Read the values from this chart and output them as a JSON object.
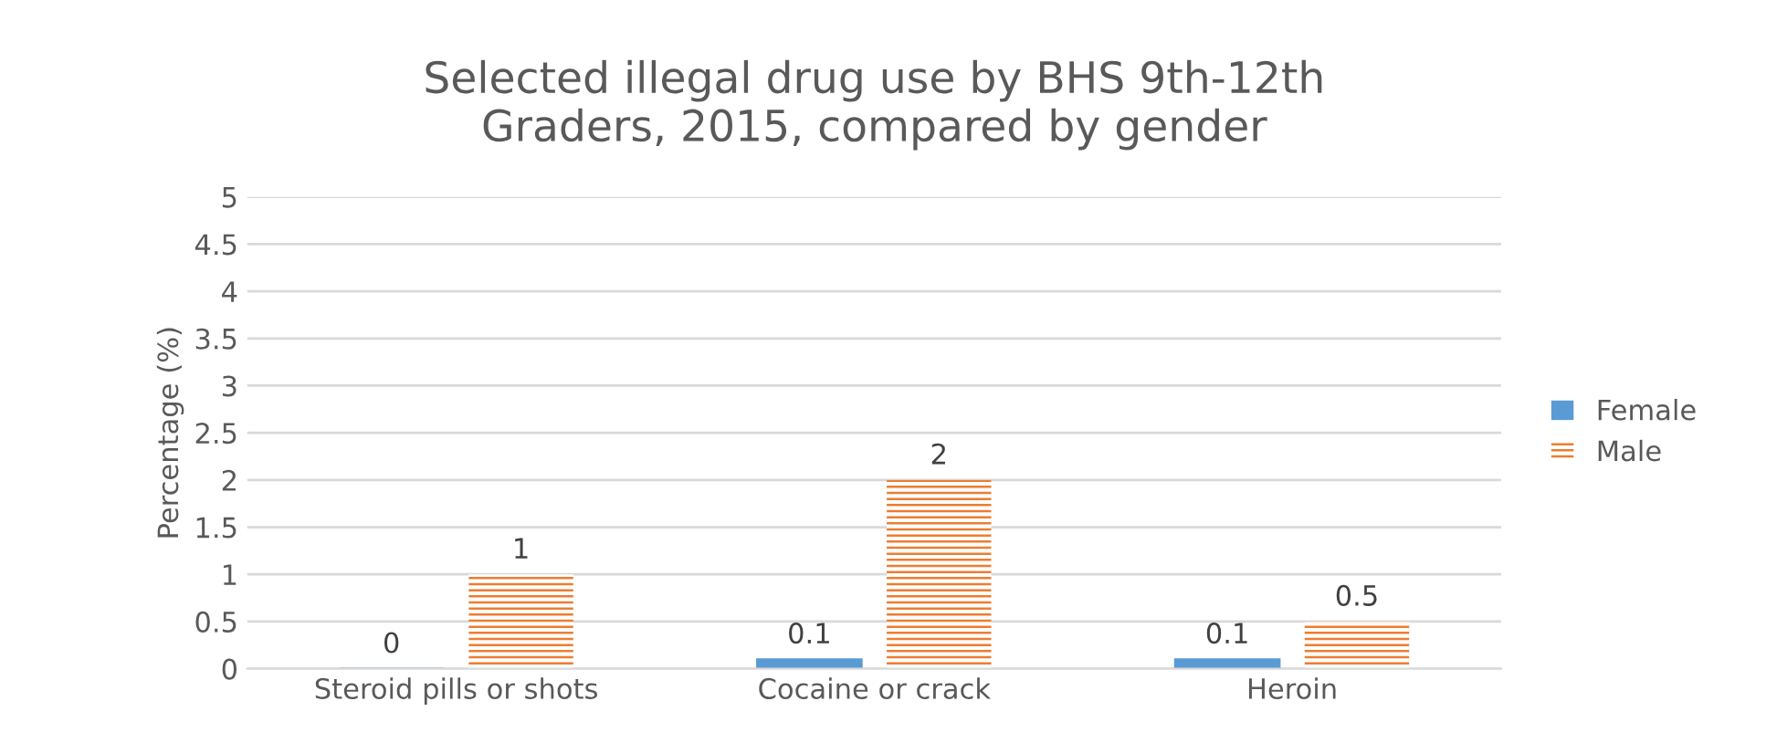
{
  "chart_data": {
    "type": "bar",
    "title": "Selected illegal drug use by BHS 9th-12th\nGraders, 2015, compared by gender",
    "ylabel": "Percentage (%)",
    "categories": [
      "Steroid pills or shots",
      "Cocaine or crack",
      "Heroin"
    ],
    "series": [
      {
        "name": "Female",
        "color": "#5b9bd5",
        "values": [
          0,
          0.1,
          0.1
        ]
      },
      {
        "name": "Male",
        "color": "#ed7d31",
        "values": [
          1,
          2,
          0.5
        ]
      }
    ],
    "ylim": [
      0,
      5
    ],
    "yticks": [
      0,
      0.5,
      1,
      1.5,
      2,
      2.5,
      3,
      3.5,
      4,
      4.5,
      5
    ],
    "grid": "y",
    "legend": "right",
    "data_labels": true
  }
}
